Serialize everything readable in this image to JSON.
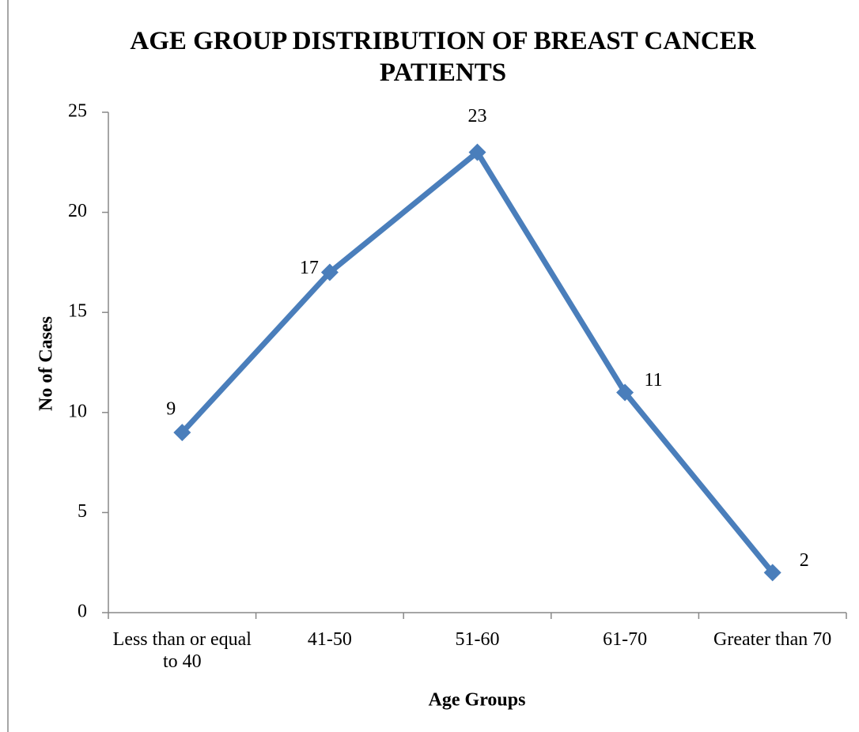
{
  "chart_data": {
    "type": "line",
    "title": "AGE GROUP DISTRIBUTION OF BREAST CANCER PATIENTS",
    "x_label": "Age Groups",
    "y_label": "No of Cases",
    "categories": [
      "Less than or equal to 40",
      "41-50",
      "51-60",
      "61-70",
      "Greater than 70"
    ],
    "series": [
      {
        "name": "No of Cases",
        "color": "#4a7ebb",
        "values": [
          9,
          17,
          23,
          11,
          2
        ]
      }
    ],
    "ylim": [
      0,
      25
    ],
    "yticks": [
      0,
      5,
      10,
      15,
      20,
      25
    ],
    "grid": false,
    "legend": false
  }
}
